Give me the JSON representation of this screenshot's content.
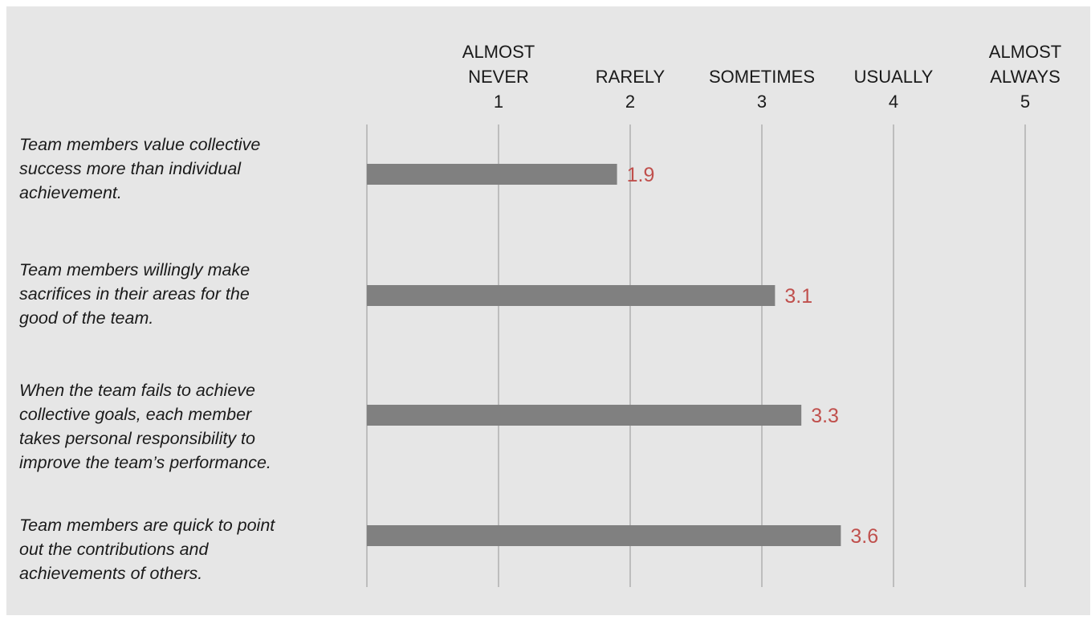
{
  "chart_data": {
    "type": "bar",
    "orientation": "horizontal",
    "scale": [
      {
        "label_lines": [
          "ALMOST",
          "NEVER",
          "1"
        ],
        "value": 1
      },
      {
        "label_lines": [
          "RARELY",
          "2"
        ],
        "value": 2
      },
      {
        "label_lines": [
          "SOMETIMES",
          "3"
        ],
        "value": 3
      },
      {
        "label_lines": [
          "USUALLY",
          "4"
        ],
        "value": 4
      },
      {
        "label_lines": [
          "ALMOST",
          "ALWAYS",
          "5"
        ],
        "value": 5
      }
    ],
    "xlim": [
      0,
      5
    ],
    "grid": true,
    "categories": [
      [
        "Team members value collective",
        "success more than individual",
        "achievement."
      ],
      [
        "Team members willingly make",
        "sacrifices in their areas for the",
        "good of the team."
      ],
      [
        "When the team fails to achieve",
        "collective goals, each member",
        "takes personal responsibility to",
        "improve the team’s performance."
      ],
      [
        "Team members are quick to point",
        "out the contributions and",
        "achievements of others."
      ]
    ],
    "values": [
      1.9,
      3.1,
      3.3,
      3.6
    ],
    "value_labels": [
      "1.9",
      "3.1",
      "3.3",
      "3.6"
    ],
    "colors": {
      "bar": "#808080",
      "value_label": "#c0504d",
      "gridline": "#bdbdbd",
      "background": "#e6e6e6"
    }
  }
}
